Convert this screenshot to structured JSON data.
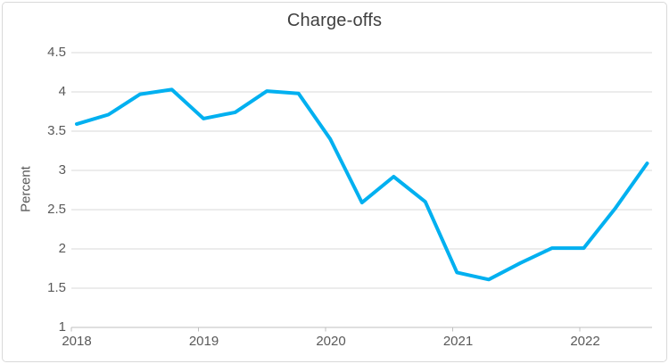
{
  "window": {
    "background": "#ffffff",
    "border_color": "#d9d9d9"
  },
  "chart_data": {
    "type": "line",
    "title": "Charge-offs",
    "ylabel": "Percent",
    "xlabel": "",
    "x": [
      "2018 Q1",
      "2018 Q2",
      "2018 Q3",
      "2018 Q4",
      "2019 Q1",
      "2019 Q2",
      "2019 Q3",
      "2019 Q4",
      "2020 Q1",
      "2020 Q2",
      "2020 Q3",
      "2020 Q4",
      "2021 Q1",
      "2021 Q2",
      "2021 Q3",
      "2021 Q4",
      "2022 Q1",
      "2022 Q2",
      "2022 Q3"
    ],
    "series": [
      {
        "name": "Charge-offs",
        "values": [
          3.59,
          3.71,
          3.97,
          4.03,
          3.66,
          3.74,
          4.01,
          3.98,
          3.4,
          2.59,
          2.92,
          2.6,
          1.7,
          1.61,
          1.82,
          2.01,
          2.01,
          2.52,
          3.09
        ]
      }
    ],
    "ylim": [
      1,
      4.5
    ],
    "y_tick_labels": [
      "4.5",
      "4",
      "3.5",
      "3",
      "2.5",
      "2",
      "1.5",
      "1"
    ],
    "x_tick_labels": [
      "2018",
      "2019",
      "2020",
      "2021",
      "2022"
    ],
    "grid": true,
    "legend": false,
    "line_color": "#00b0f0",
    "grid_color": "#d9d9d9",
    "axis_color": "#bfbfbf",
    "tick_text_color": "#595959",
    "title_color": "#404040"
  }
}
